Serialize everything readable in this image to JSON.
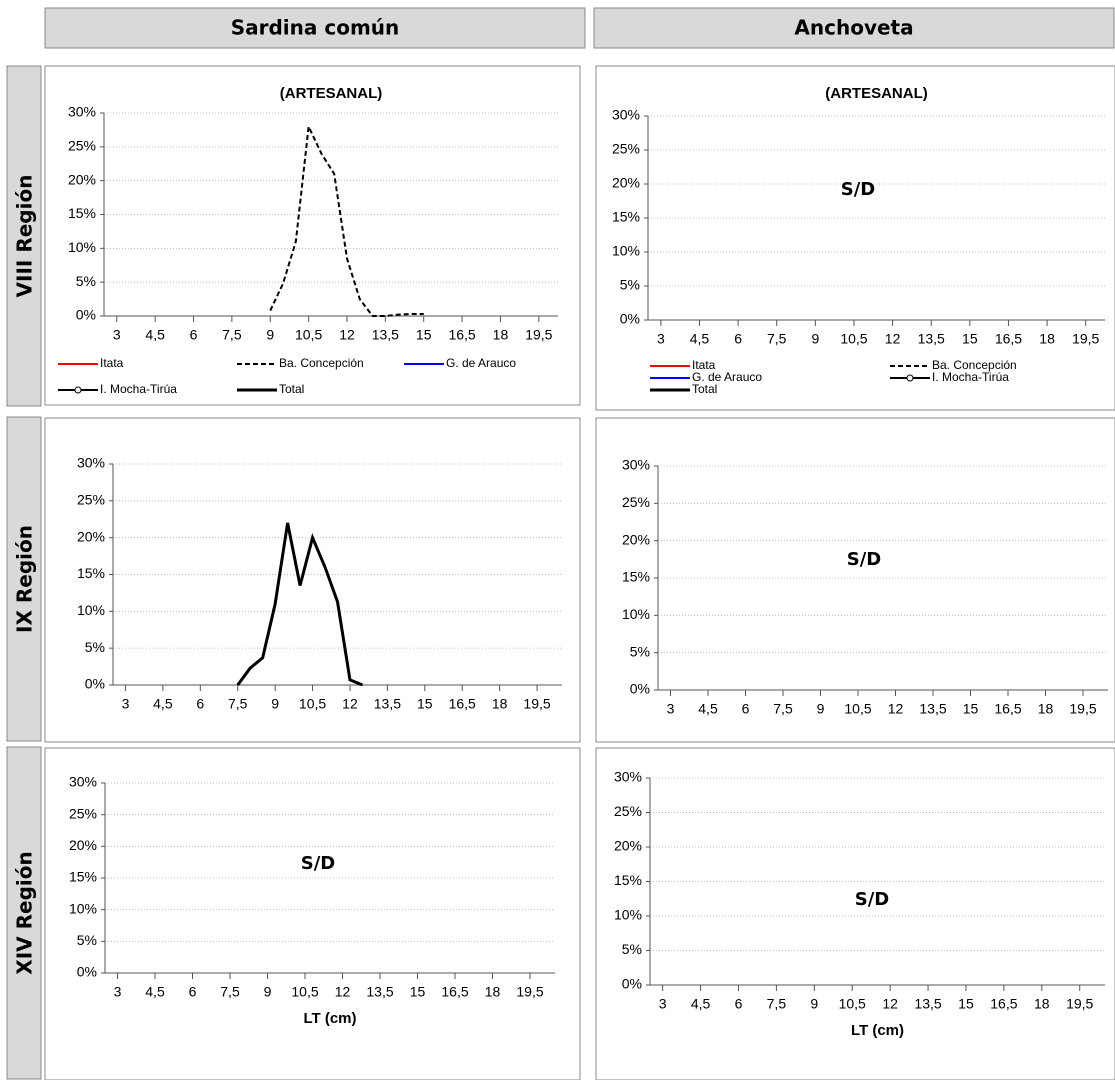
{
  "columns": [
    "Sardina común",
    "Anchoveta"
  ],
  "rows": [
    "VIII Región",
    "IX Región",
    "XIV Región"
  ],
  "chart_data": [
    {
      "type": "line",
      "title": "(ARTESANAL)",
      "x": [
        9,
        9.5,
        10,
        10.5,
        11,
        11.5,
        12,
        12.5,
        13,
        13.5,
        14,
        14.5,
        15
      ],
      "series": [
        {
          "name": "Itata",
          "color": "#ff0000",
          "values": [
            null,
            null,
            null,
            null,
            null,
            null,
            null,
            null,
            null,
            null,
            null,
            null,
            null
          ]
        },
        {
          "name": "Ba. Concepción",
          "color": "#000000",
          "dash": true,
          "values": [
            0.8,
            4.8,
            11,
            28,
            24,
            21,
            8.5,
            2.5,
            0,
            0,
            0.2,
            0.3,
            0.3
          ]
        },
        {
          "name": "G. de Arauco",
          "color": "#0000ff",
          "values": [
            null,
            null,
            null,
            null,
            null,
            null,
            null,
            null,
            null,
            null,
            null,
            null,
            null
          ]
        },
        {
          "name": "I. Mocha-Tirúa",
          "color": "#000000",
          "marker": "circle",
          "values": [
            null,
            null,
            null,
            null,
            null,
            null,
            null,
            null,
            null,
            null,
            null,
            null,
            null
          ]
        },
        {
          "name": "Total",
          "color": "#000000",
          "thick": true,
          "values": [
            null,
            null,
            null,
            null,
            null,
            null,
            null,
            null,
            null,
            null,
            null,
            null,
            null
          ]
        }
      ],
      "xlim": [
        2.5,
        20.25
      ],
      "xticks": [
        3,
        {
          "value": 4.5,
          "label": "4,5"
        },
        6,
        {
          "value": 7.5,
          "label": "7,5"
        },
        9,
        {
          "value": 10.5,
          "label": "10,5"
        },
        12,
        {
          "value": 13.5,
          "label": "13,5"
        },
        15,
        {
          "value": 16.5,
          "label": "16,5"
        },
        18,
        {
          "value": 19.5,
          "label": "19,5"
        }
      ],
      "ylim": [
        0,
        30
      ],
      "yticks": [
        {
          "value": 0,
          "label": "0%"
        },
        {
          "value": 5,
          "label": "5%"
        },
        {
          "value": 10,
          "label": "10%"
        },
        {
          "value": 15,
          "label": "15%"
        },
        {
          "value": 20,
          "label": "20%"
        },
        {
          "value": 25,
          "label": "25%"
        },
        {
          "value": 30,
          "label": "30%"
        }
      ],
      "grid": true,
      "legend": "bottom"
    },
    {
      "type": "line",
      "title": "(ARTESANAL)",
      "annotation": "S/D",
      "series": [
        {
          "name": "Itata",
          "color": "#ff0000"
        },
        {
          "name": "Ba. Concepción",
          "color": "#000000",
          "dash": true
        },
        {
          "name": "G. de Arauco",
          "color": "#0000ff"
        },
        {
          "name": "I. Mocha-Tirúa",
          "color": "#000000",
          "marker": "circle"
        },
        {
          "name": "Total",
          "color": "#000000",
          "thick": true
        }
      ],
      "xlim": [
        2.5,
        20.25
      ],
      "xticks": [
        3,
        {
          "value": 4.5,
          "label": "4,5"
        },
        6,
        {
          "value": 7.5,
          "label": "7,5"
        },
        9,
        {
          "value": 10.5,
          "label": "10,5"
        },
        12,
        {
          "value": 13.5,
          "label": "13,5"
        },
        15,
        {
          "value": 16.5,
          "label": "16,5"
        },
        18,
        {
          "value": 19.5,
          "label": "19,5"
        }
      ],
      "ylim": [
        0,
        30
      ],
      "yticks": [
        {
          "value": 0,
          "label": "0%"
        },
        {
          "value": 5,
          "label": "5%"
        },
        {
          "value": 10,
          "label": "10%"
        },
        {
          "value": 15,
          "label": "15%"
        },
        {
          "value": 20,
          "label": "20%"
        },
        {
          "value": 25,
          "label": "25%"
        },
        {
          "value": 30,
          "label": "30%"
        }
      ],
      "grid": true,
      "legend": "bottom"
    },
    {
      "type": "line",
      "x": [
        7.5,
        8,
        8.5,
        9,
        9.5,
        10,
        10.5,
        11,
        11.5,
        12,
        12.5
      ],
      "series": [
        {
          "color": "#000000",
          "thick": true,
          "values": [
            0,
            2.3,
            3.7,
            11,
            22,
            13.5,
            20,
            16,
            11.3,
            0.7,
            0
          ]
        }
      ],
      "xlim": [
        2.5,
        20.5
      ],
      "xticks": [
        3,
        {
          "value": 4.5,
          "label": "4,5"
        },
        6,
        {
          "value": 7.5,
          "label": "7,5"
        },
        9,
        {
          "value": 10.5,
          "label": "10,5"
        },
        12,
        {
          "value": 13.5,
          "label": "13,5"
        },
        15,
        {
          "value": 16.5,
          "label": "16,5"
        },
        18,
        {
          "value": 19.5,
          "label": "19,5"
        }
      ],
      "ylim": [
        0,
        30
      ],
      "yticks": [
        {
          "value": 0,
          "label": "0%"
        },
        {
          "value": 5,
          "label": "5%"
        },
        {
          "value": 10,
          "label": "10%"
        },
        {
          "value": 15,
          "label": "15%"
        },
        {
          "value": 20,
          "label": "20%"
        },
        {
          "value": 25,
          "label": "25%"
        },
        {
          "value": 30,
          "label": "30%"
        }
      ],
      "grid": true
    },
    {
      "type": "line",
      "annotation": "S/D",
      "xlim": [
        2.5,
        20.5
      ],
      "xticks": [
        3,
        {
          "value": 4.5,
          "label": "4,5"
        },
        6,
        {
          "value": 7.5,
          "label": "7,5"
        },
        9,
        {
          "value": 10.5,
          "label": "10,5"
        },
        12,
        {
          "value": 13.5,
          "label": "13,5"
        },
        15,
        {
          "value": 16.5,
          "label": "16,5"
        },
        18,
        {
          "value": 19.5,
          "label": "19,5"
        }
      ],
      "ylim": [
        0,
        30
      ],
      "yticks": [
        {
          "value": 0,
          "label": "0%"
        },
        {
          "value": 5,
          "label": "5%"
        },
        {
          "value": 10,
          "label": "10%"
        },
        {
          "value": 15,
          "label": "15%"
        },
        {
          "value": 20,
          "label": "20%"
        },
        {
          "value": 25,
          "label": "25%"
        },
        {
          "value": 30,
          "label": "30%"
        }
      ],
      "grid": true
    },
    {
      "type": "line",
      "annotation": "S/D",
      "xlabel": "LT (cm)",
      "xlim": [
        2.5,
        20.5
      ],
      "xticks": [
        3,
        {
          "value": 4.5,
          "label": "4,5"
        },
        6,
        {
          "value": 7.5,
          "label": "7,5"
        },
        9,
        {
          "value": 10.5,
          "label": "10,5"
        },
        12,
        {
          "value": 13.5,
          "label": "13,5"
        },
        15,
        {
          "value": 16.5,
          "label": "16,5"
        },
        18,
        {
          "value": 19.5,
          "label": "19,5"
        }
      ],
      "ylim": [
        0,
        30
      ],
      "yticks": [
        {
          "value": 0,
          "label": "0%"
        },
        {
          "value": 5,
          "label": "5%"
        },
        {
          "value": 10,
          "label": "10%"
        },
        {
          "value": 15,
          "label": "15%"
        },
        {
          "value": 20,
          "label": "20%"
        },
        {
          "value": 25,
          "label": "25%"
        },
        {
          "value": 30,
          "label": "30%"
        }
      ],
      "grid": true
    },
    {
      "type": "line",
      "annotation": "S/D",
      "xlabel": "LT (cm)",
      "xlim": [
        2.5,
        20.5
      ],
      "xticks": [
        3,
        {
          "value": 4.5,
          "label": "4,5"
        },
        6,
        {
          "value": 7.5,
          "label": "7,5"
        },
        9,
        {
          "value": 10.5,
          "label": "10,5"
        },
        12,
        {
          "value": 13.5,
          "label": "13,5"
        },
        15,
        {
          "value": 16.5,
          "label": "16,5"
        },
        18,
        {
          "value": 19.5,
          "label": "19,5"
        }
      ],
      "ylim": [
        0,
        30
      ],
      "yticks": [
        {
          "value": 0,
          "label": "0%"
        },
        {
          "value": 5,
          "label": "5%"
        },
        {
          "value": 10,
          "label": "10%"
        },
        {
          "value": 15,
          "label": "15%"
        },
        {
          "value": 20,
          "label": "20%"
        },
        {
          "value": 25,
          "label": "25%"
        },
        {
          "value": 30,
          "label": "30%"
        }
      ],
      "grid": true
    }
  ]
}
